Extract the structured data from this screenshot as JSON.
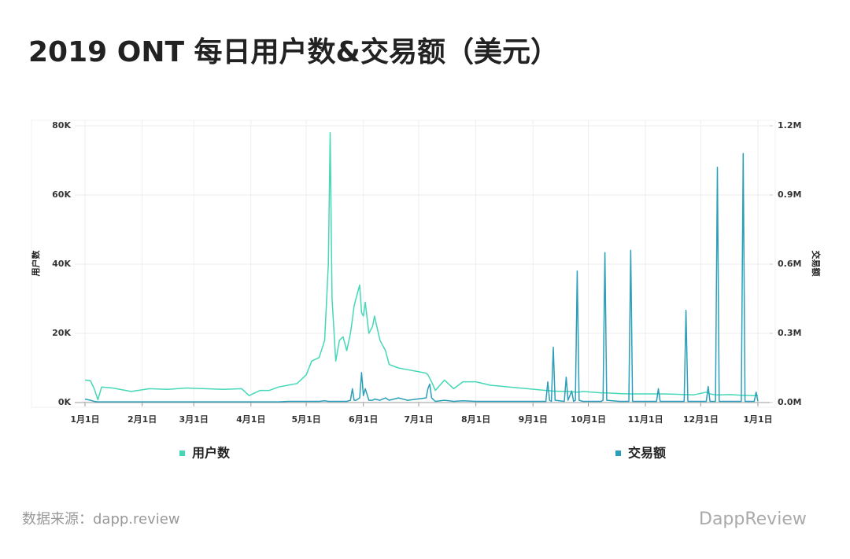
{
  "chart_data": {
    "type": "line",
    "title": "2019 ONT 每日用户数&交易额（美元）",
    "y_label": "用户数",
    "y2_label": "交易额",
    "source": "数据来源：dapp.review",
    "watermark": "DappReview",
    "xlim": [
      0,
      365
    ],
    "xticks": [
      {
        "value": 0,
        "label": "1月1日"
      },
      {
        "value": 31,
        "label": "2月1日"
      },
      {
        "value": 59,
        "label": "3月1日"
      },
      {
        "value": 90,
        "label": "4月1日"
      },
      {
        "value": 120,
        "label": "5月1日"
      },
      {
        "value": 151,
        "label": "6月1日"
      },
      {
        "value": 181,
        "label": "7月1日"
      },
      {
        "value": 212,
        "label": "8月1日"
      },
      {
        "value": 243,
        "label": "9月1日"
      },
      {
        "value": 273,
        "label": "10月1日"
      },
      {
        "value": 304,
        "label": "11月1日"
      },
      {
        "value": 334,
        "label": "12月1日"
      },
      {
        "value": 365,
        "label": "1月1日"
      }
    ],
    "ylim": [
      0,
      80000
    ],
    "yticks": [
      {
        "value": 0,
        "label": "0K"
      },
      {
        "value": 20000,
        "label": "20K"
      },
      {
        "value": 40000,
        "label": "40K"
      },
      {
        "value": 60000,
        "label": "60K"
      },
      {
        "value": 80000,
        "label": "80K"
      }
    ],
    "y2lim": [
      0,
      1200000
    ],
    "y2ticks": [
      {
        "value": 0,
        "label": "0.0M"
      },
      {
        "value": 300000,
        "label": "0.3M"
      },
      {
        "value": 600000,
        "label": "0.6M"
      },
      {
        "value": 900000,
        "label": "0.9M"
      },
      {
        "value": 1200000,
        "label": "1.2M"
      }
    ],
    "grid": true,
    "x": [
      0,
      3,
      5,
      7,
      9,
      15,
      25,
      35,
      45,
      55,
      65,
      75,
      85,
      89,
      95,
      100,
      105,
      110,
      115,
      120,
      123,
      127,
      130,
      132,
      133,
      134,
      136,
      138,
      140,
      142,
      144,
      145,
      146,
      147,
      149,
      150,
      151,
      152,
      154,
      156,
      157,
      160,
      163,
      165,
      170,
      175,
      180,
      185,
      186,
      187,
      188,
      190,
      195,
      200,
      205,
      212,
      220,
      230,
      240,
      250,
      251,
      252,
      253,
      254,
      255,
      260,
      261,
      262,
      264,
      265,
      266,
      267,
      268,
      270,
      280,
      281,
      282,
      283,
      290,
      295,
      296,
      297,
      300,
      310,
      311,
      312,
      320,
      325,
      326,
      327,
      330,
      337,
      338,
      339,
      342,
      343,
      344,
      350,
      356,
      357,
      358,
      363,
      364,
      365
    ],
    "series": [
      {
        "name": "用户数",
        "color": "#45d8b6",
        "axis": "y",
        "values": [
          6500,
          6300,
          4000,
          800,
          4500,
          4200,
          3200,
          4000,
          3800,
          4200,
          4000,
          3800,
          4000,
          2000,
          3500,
          3500,
          4500,
          5000,
          5500,
          8000,
          12000,
          13000,
          18000,
          40000,
          78000,
          30000,
          12000,
          18000,
          19000,
          15000,
          20000,
          24000,
          28000,
          30000,
          34000,
          26000,
          25000,
          29000,
          20000,
          22000,
          25000,
          18000,
          15000,
          11000,
          10000,
          9500,
          9000,
          8500,
          8000,
          7000,
          6000,
          3500,
          6500,
          4000,
          6000,
          6000,
          5000,
          4500,
          4000,
          3500,
          3500,
          3400,
          3400,
          3300,
          3300,
          3200,
          3200,
          3200,
          3100,
          3100,
          3000,
          3000,
          3000,
          3200,
          2800,
          2800,
          2800,
          2800,
          2600,
          2500,
          2500,
          2500,
          2500,
          2500,
          2500,
          2500,
          2400,
          2300,
          2300,
          2300,
          2200,
          3000,
          2800,
          2500,
          2200,
          2200,
          2200,
          2300,
          2100,
          2100,
          2100,
          2000,
          2000,
          2000
        ]
      },
      {
        "name": "交易额",
        "color": "#2b9fb9",
        "axis": "y2",
        "values": [
          15000,
          10000,
          5000,
          3000,
          3000,
          3000,
          3000,
          3000,
          3000,
          3000,
          3000,
          3000,
          3000,
          3000,
          3000,
          3000,
          3000,
          5000,
          5000,
          5000,
          5000,
          5000,
          8000,
          5000,
          5000,
          5000,
          5000,
          5000,
          5000,
          5000,
          10000,
          60000,
          10000,
          10000,
          20000,
          130000,
          30000,
          60000,
          10000,
          10000,
          15000,
          10000,
          20000,
          10000,
          20000,
          10000,
          15000,
          20000,
          60000,
          80000,
          20000,
          5000,
          10000,
          5000,
          8000,
          5000,
          5000,
          5000,
          5000,
          5000,
          90000,
          10000,
          5000,
          240000,
          10000,
          5000,
          110000,
          10000,
          50000,
          5000,
          10000,
          570000,
          10000,
          5000,
          5000,
          10000,
          650000,
          10000,
          5000,
          5000,
          660000,
          5000,
          5000,
          5000,
          60000,
          5000,
          5000,
          5000,
          400000,
          5000,
          5000,
          5000,
          70000,
          5000,
          5000,
          1020000,
          5000,
          5000,
          5000,
          1080000,
          5000,
          5000,
          45000,
          5000
        ]
      }
    ]
  }
}
